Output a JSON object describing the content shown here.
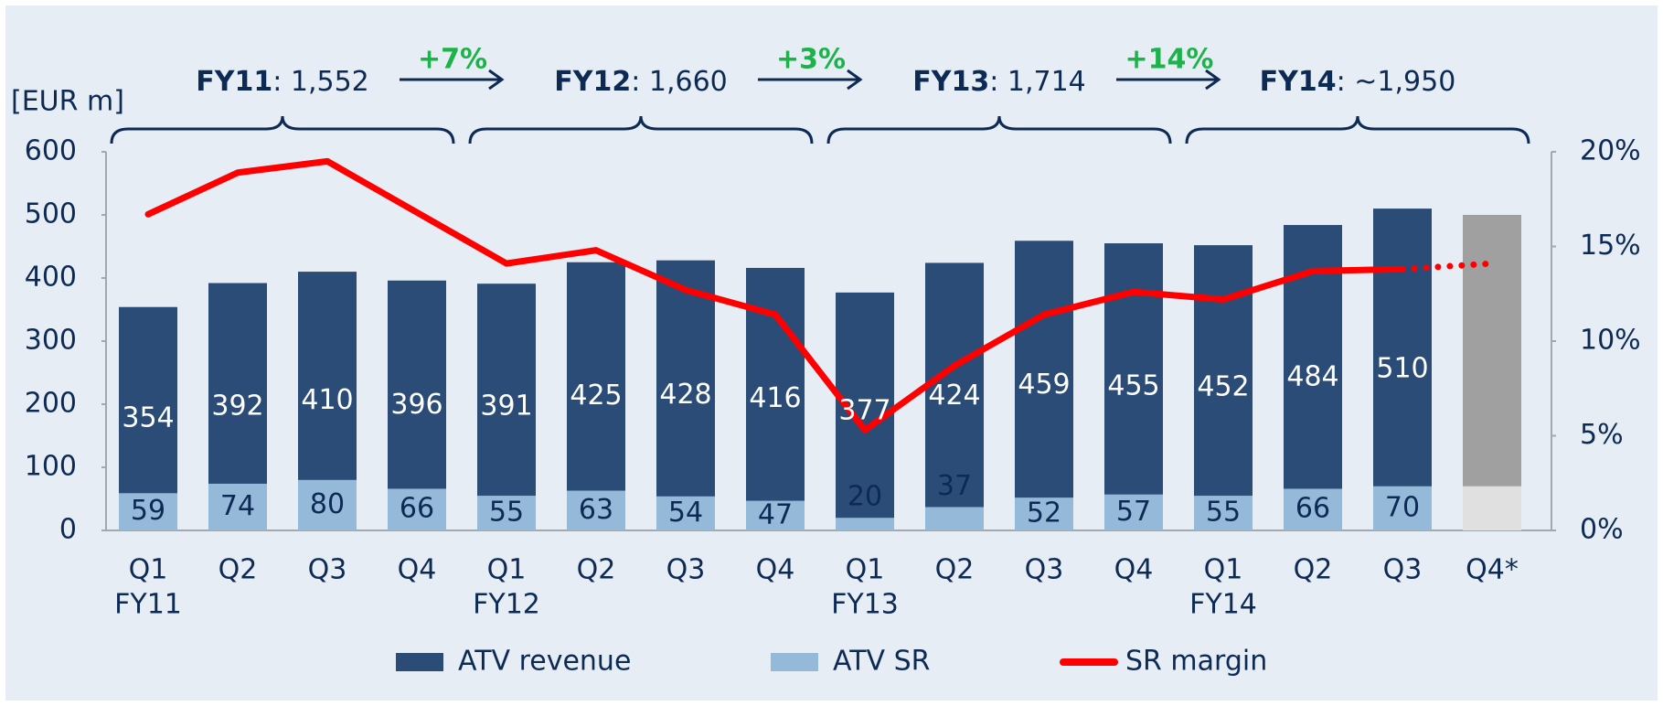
{
  "chart_data": {
    "type": "bar",
    "y_unit_label": "[EUR m]",
    "categories": [
      "Q1",
      "Q2",
      "Q3",
      "Q4",
      "Q1",
      "Q2",
      "Q3",
      "Q4",
      "Q1",
      "Q2",
      "Q3",
      "Q4",
      "Q1",
      "Q2",
      "Q3",
      "Q4*"
    ],
    "year_labels": [
      "FY11",
      null,
      null,
      null,
      "FY12",
      null,
      null,
      null,
      "FY13",
      null,
      null,
      null,
      "FY14",
      null,
      null,
      null
    ],
    "groups": [
      {
        "name": "FY11",
        "total": ": 1,552"
      },
      {
        "name": "FY12",
        "total": ": 1,660"
      },
      {
        "name": "FY13",
        "total": ": 1,714"
      },
      {
        "name": "FY14",
        "total": ": ~1,950"
      }
    ],
    "growth": [
      "+7%",
      "+3%",
      "+14%"
    ],
    "ylim": [
      0,
      600
    ],
    "yticks": [
      0,
      100,
      200,
      300,
      400,
      500,
      600
    ],
    "y2lim": [
      0,
      20
    ],
    "y2ticks": [
      {
        "value": 0,
        "label": "0%"
      },
      {
        "value": 5,
        "label": "5%"
      },
      {
        "value": 10,
        "label": "10%"
      },
      {
        "value": 15,
        "label": "15%"
      },
      {
        "value": 20,
        "label": "20%"
      }
    ],
    "grid": false,
    "series": [
      {
        "name": "ATV revenue",
        "color": "#2b4c76",
        "colors": [
          "#2b4c76",
          "#2b4c76",
          "#2b4c76",
          "#2b4c76",
          "#2b4c76",
          "#2b4c76",
          "#2b4c76",
          "#2b4c76",
          "#2b4c76",
          "#2b4c76",
          "#2b4c76",
          "#2b4c76",
          "#2b4c76",
          "#2b4c76",
          "#2b4c76",
          "#a0a0a0"
        ],
        "values": [
          354,
          392,
          410,
          396,
          391,
          425,
          428,
          416,
          377,
          424,
          459,
          455,
          452,
          484,
          510,
          500
        ],
        "value_labels": [
          354,
          392,
          410,
          396,
          391,
          425,
          428,
          416,
          377,
          424,
          459,
          455,
          452,
          484,
          510,
          null
        ]
      },
      {
        "name": "ATV SR",
        "color": "#95b9d8",
        "colors": [
          "#95b9d8",
          "#95b9d8",
          "#95b9d8",
          "#95b9d8",
          "#95b9d8",
          "#95b9d8",
          "#95b9d8",
          "#95b9d8",
          "#95b9d8",
          "#95b9d8",
          "#95b9d8",
          "#95b9d8",
          "#95b9d8",
          "#95b9d8",
          "#95b9d8",
          "#e0e0e0"
        ],
        "values": [
          59,
          74,
          80,
          66,
          55,
          63,
          54,
          47,
          20,
          37,
          52,
          57,
          55,
          66,
          70,
          70
        ],
        "value_labels": [
          59,
          74,
          80,
          66,
          55,
          63,
          54,
          47,
          20,
          37,
          52,
          57,
          55,
          66,
          70,
          null
        ]
      },
      {
        "name": "SR margin",
        "color": "#ff0000",
        "type": "line",
        "axis": "y2",
        "values": [
          16.7,
          18.9,
          19.5,
          16.8,
          14.1,
          14.8,
          12.7,
          11.4,
          5.3,
          8.7,
          11.4,
          12.6,
          12.2,
          13.7,
          13.8,
          14.1
        ],
        "line_styles": [
          "solid",
          "solid",
          "solid",
          "solid",
          "solid",
          "solid",
          "solid",
          "solid",
          "solid",
          "solid",
          "solid",
          "solid",
          "solid",
          "solid",
          "solid",
          "dotted"
        ]
      }
    ]
  }
}
